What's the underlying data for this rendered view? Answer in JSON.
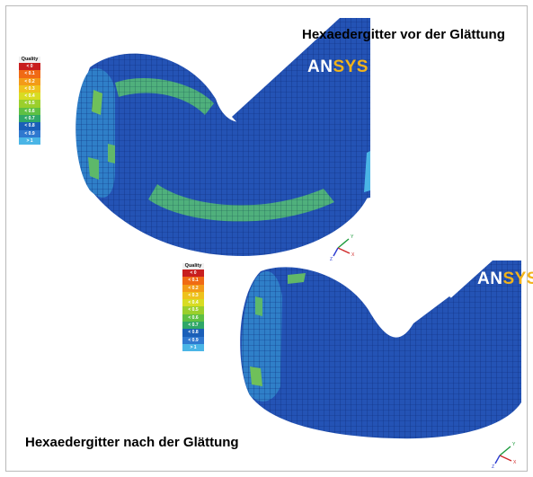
{
  "titles": {
    "before": "Hexaedergitter vor der Glättung",
    "after": "Hexaedergitter nach der Glättung"
  },
  "logo": {
    "part1": "AN",
    "part2": "SYS"
  },
  "legend": {
    "header": "Quality",
    "entries": [
      {
        "label": "< 0",
        "color": "#c81e1e"
      },
      {
        "label": "< 0.1",
        "color": "#f06a14"
      },
      {
        "label": "< 0.2",
        "color": "#f39b18"
      },
      {
        "label": "< 0.3",
        "color": "#eec21c"
      },
      {
        "label": "< 0.4",
        "color": "#d8dc22"
      },
      {
        "label": "< 0.5",
        "color": "#9bcf2c"
      },
      {
        "label": "< 0.6",
        "color": "#5ec043"
      },
      {
        "label": "< 0.7",
        "color": "#2fa768"
      },
      {
        "label": "< 0.8",
        "color": "#1a5fb8"
      },
      {
        "label": "< 0.9",
        "color": "#2f78cf"
      },
      {
        "label": "> 1",
        "color": "#4ab5e6"
      }
    ]
  },
  "axes": {
    "x": "X",
    "y": "Y",
    "z": "Z"
  },
  "colors": {
    "mesh_base": "#1e4fb0",
    "mesh_edge": "#0a246a",
    "highlight": "#5ebd6a"
  }
}
